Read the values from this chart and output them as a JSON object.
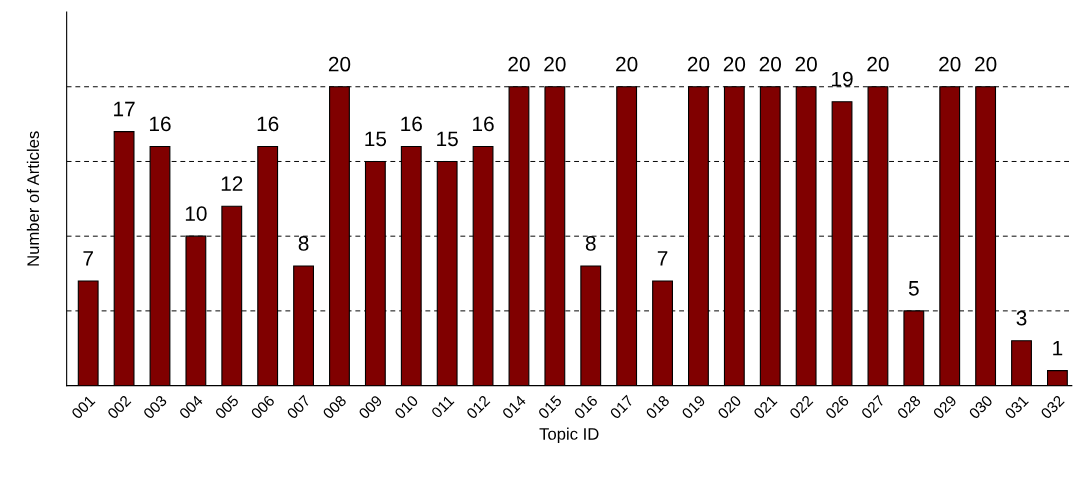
{
  "chart_data": {
    "type": "bar",
    "xlabel": "Topic ID",
    "ylabel": "Number of Articles",
    "categories": [
      "001",
      "002",
      "003",
      "004",
      "005",
      "006",
      "007",
      "008",
      "009",
      "010",
      "011",
      "012",
      "014",
      "015",
      "016",
      "017",
      "018",
      "019",
      "020",
      "021",
      "022",
      "026",
      "027",
      "028",
      "029",
      "030",
      "031",
      "032"
    ],
    "values": [
      7,
      17,
      16,
      10,
      12,
      16,
      8,
      20,
      15,
      16,
      15,
      16,
      20,
      20,
      8,
      20,
      7,
      20,
      20,
      20,
      20,
      19,
      20,
      5,
      20,
      20,
      3,
      1
    ],
    "color": "#800000",
    "ylim": [
      0,
      25
    ],
    "yticks": [
      {
        "value": 5,
        "label": null
      },
      {
        "value": 10,
        "label": null
      },
      {
        "value": 15,
        "label": null
      },
      {
        "value": 20,
        "label": null
      }
    ],
    "grid": "y",
    "line_style": "dashed",
    "tick_labels": "x",
    "data_labels": true
  }
}
